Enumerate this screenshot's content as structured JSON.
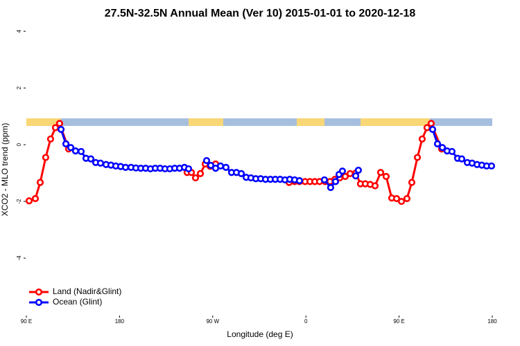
{
  "chart_data": {
    "type": "line",
    "title": "27.5N-32.5N Annual Mean (Ver 10)   2015-01-01 to 2020-12-18",
    "x_label": "Longitude (deg E)",
    "y_label": "XCO2 - MLO trend (ppm)",
    "xlim": [
      90,
      540
    ],
    "xticks": [
      {
        "value": 90,
        "label": "90 E"
      },
      180,
      {
        "value": 270,
        "label": "90 W"
      },
      {
        "value": 360,
        "label": "0"
      },
      {
        "value": 450,
        "label": "90 E"
      },
      {
        "value": 540,
        "label": "180"
      }
    ],
    "ylim": [
      -6,
      4.37
    ],
    "yticks": [
      -4,
      -2,
      0,
      2,
      4
    ],
    "legend": "bottom-left",
    "series": [
      {
        "name": "Land (Nadir&Glint)",
        "color": "#ff0000",
        "x": [
          92.7,
          98.7,
          103.4,
          108.7,
          113.4,
          118.1,
          122.1,
          130.8,
          200,
          245.3,
          249.4,
          253.4,
          258.1,
          262.8,
          267.4,
          272.8,
          300,
          343.8,
          349.1,
          353.8,
          359.2,
          363.9,
          368.6,
          373.2,
          378.6,
          383.3,
          388.0,
          392.7,
          398.0,
          402.7,
          408.1,
          412.7,
          417.4,
          422.1,
          426.8,
          432.2,
          437.5,
          442.9,
          447.6,
          452.3,
          457.6,
          462.3,
          467.7,
          472.3,
          477.0,
          481.0,
          491.1
        ],
        "values": [
          -1.98,
          -1.9,
          -1.33,
          -0.45,
          0.2,
          0.6,
          0.75,
          -0.15,
          null,
          -0.98,
          -0.98,
          -1.17,
          -1.02,
          -0.68,
          -0.76,
          -0.68,
          null,
          -1.33,
          -1.3,
          -1.3,
          -1.3,
          -1.3,
          -1.3,
          -1.3,
          -1.3,
          -1.3,
          -1.22,
          -1.17,
          -1.12,
          -1.02,
          -1.0,
          -1.38,
          -1.38,
          -1.4,
          -1.45,
          -0.98,
          -1.12,
          -1.88,
          -1.9,
          -2.0,
          -1.9,
          -1.33,
          -0.45,
          0.2,
          0.6,
          0.75,
          -0.15
        ]
      },
      {
        "name": "Ocean (Glint)",
        "color": "#0000ff",
        "x": [
          123.5,
          128.2,
          132.9,
          137.5,
          142.9,
          147.6,
          152.3,
          157.0,
          161.6,
          167.0,
          171.7,
          176.4,
          181.1,
          185.8,
          191.1,
          195.8,
          200.5,
          205.2,
          209.9,
          214.5,
          219.2,
          223.9,
          228.6,
          233.3,
          238.0,
          242.7,
          246.7,
          255,
          264.1,
          268.1,
          272.8,
          277.5,
          282.8,
          288.2,
          292.9,
          297.6,
          302.3,
          306.9,
          311.6,
          316.3,
          321.0,
          325.7,
          330.4,
          335.1,
          339.8,
          344.4,
          349.1,
          353.8,
          365,
          377.9,
          383.9,
          388.6,
          392.0,
          395.3,
          400,
          408.1,
          410.7,
          450,
          482.4,
          487.1,
          491.8,
          496.4,
          501.1,
          506.5,
          510.5,
          515.9,
          520.5,
          525.3,
          529.9,
          534.6,
          539.3
        ],
        "values": [
          0.54,
          0.03,
          -0.1,
          -0.22,
          -0.24,
          -0.48,
          -0.5,
          -0.63,
          -0.65,
          -0.7,
          -0.72,
          -0.75,
          -0.77,
          -0.8,
          -0.8,
          -0.82,
          -0.83,
          -0.83,
          -0.85,
          -0.83,
          -0.83,
          -0.85,
          -0.85,
          -0.83,
          -0.83,
          -0.8,
          -0.85,
          null,
          -0.56,
          -0.73,
          -0.83,
          -0.75,
          -0.8,
          -0.98,
          -0.98,
          -1.02,
          -1.15,
          -1.17,
          -1.2,
          -1.2,
          -1.22,
          -1.22,
          -1.22,
          -1.22,
          -1.24,
          -1.22,
          -1.24,
          -1.27,
          null,
          -1.24,
          -1.51,
          -1.3,
          -1.05,
          -0.93,
          null,
          -1.1,
          -0.9,
          null,
          0.54,
          0.03,
          -0.1,
          -0.22,
          -0.24,
          -0.48,
          -0.5,
          -0.63,
          -0.65,
          -0.7,
          -0.72,
          -0.75,
          -0.75
        ]
      }
    ]
  }
}
